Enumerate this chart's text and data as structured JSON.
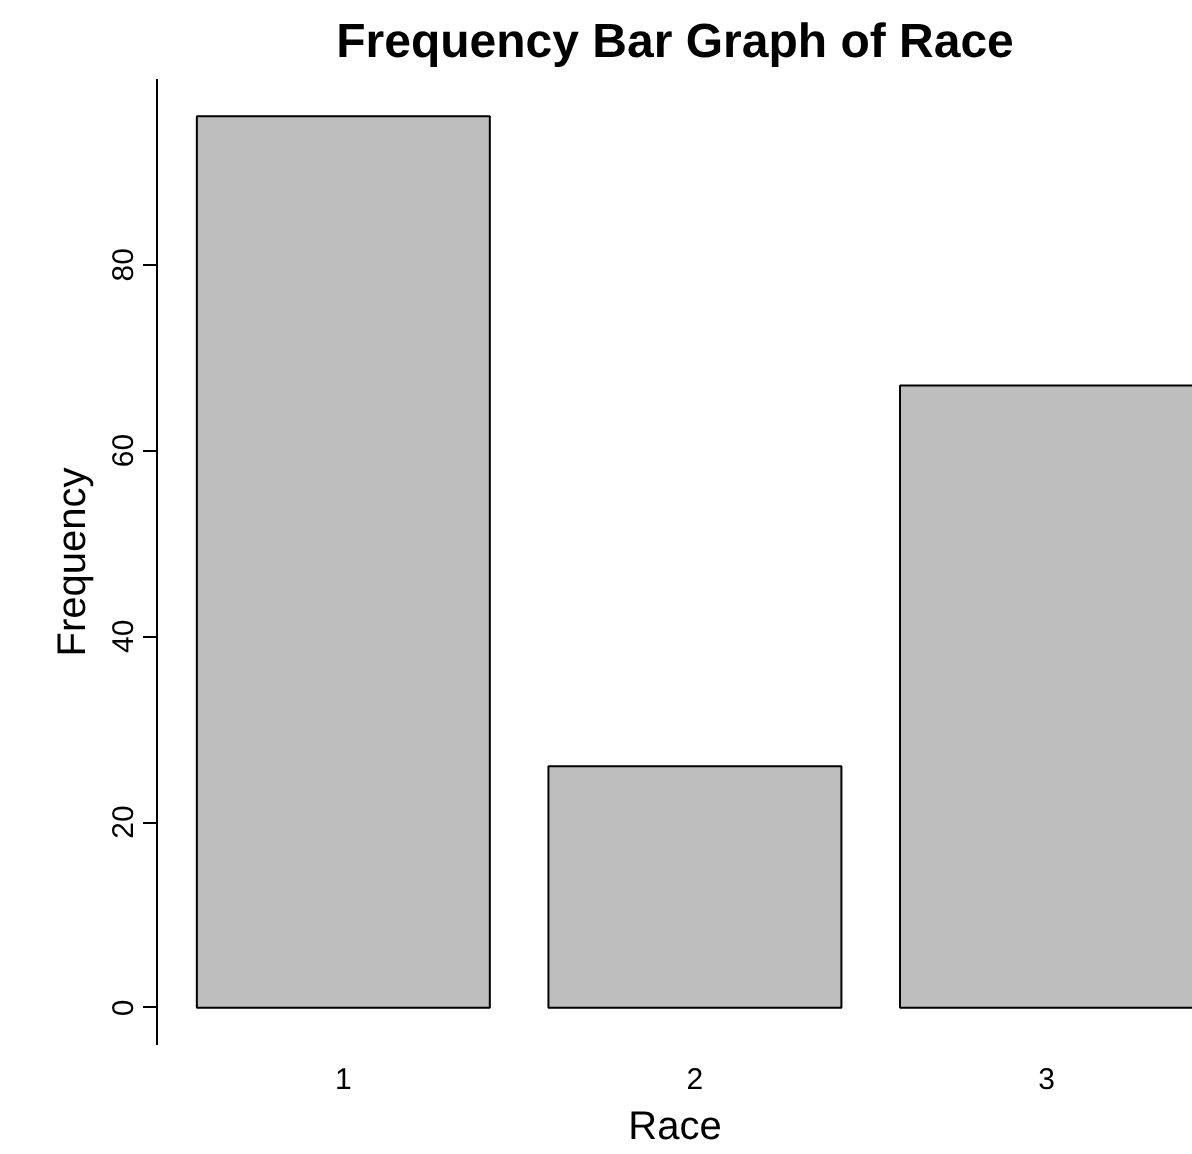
{
  "chart_data": {
    "type": "bar",
    "title": "Frequency Bar Graph of Race",
    "xlabel": "Race",
    "ylabel": "Frequency",
    "categories": [
      "1",
      "2",
      "3"
    ],
    "values": [
      96,
      26,
      67
    ],
    "color": "#bebebe",
    "ylim": [
      -4,
      100
    ],
    "yticks": [
      0,
      20,
      40,
      60,
      80
    ],
    "grid": false
  }
}
